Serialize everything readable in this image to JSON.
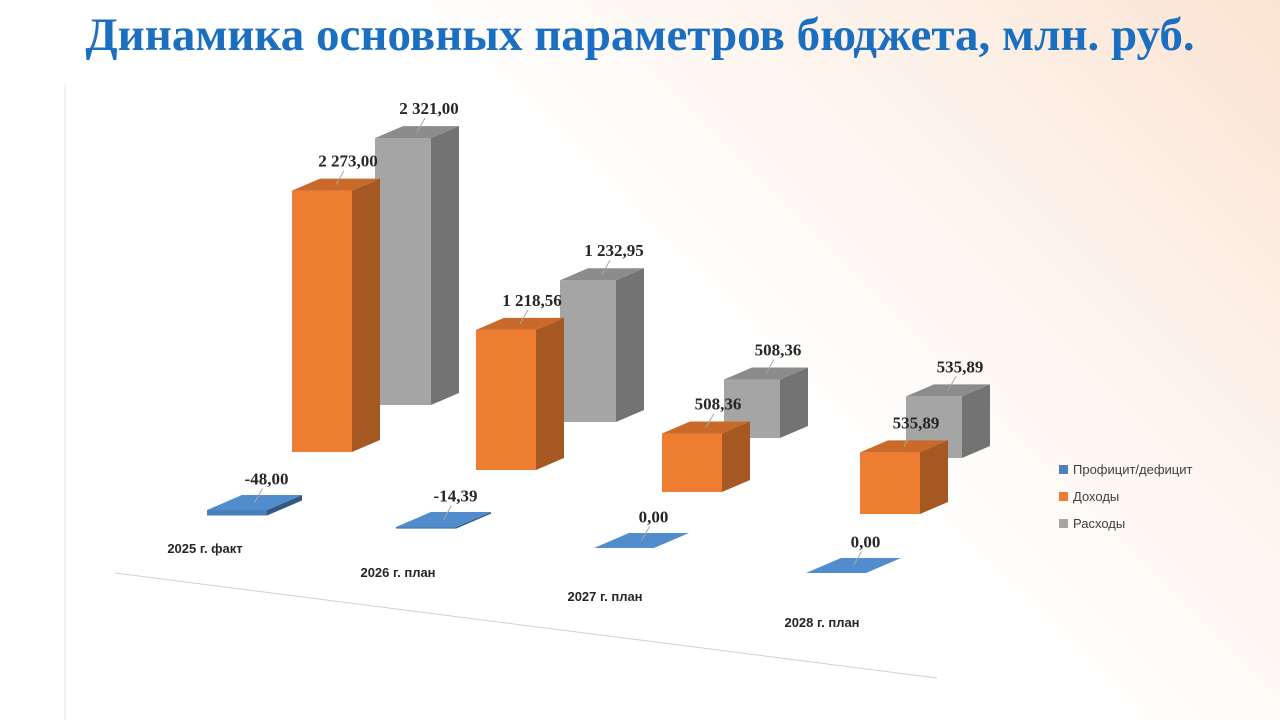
{
  "chart_data": {
    "type": "bar",
    "title": "Динамика основных параметров бюджета, млн. руб.",
    "categories": [
      "2025 г. факт",
      "2026 г. план",
      "2027 г. план",
      "2028 г. план"
    ],
    "series": [
      {
        "name": "Профицит/дефицит",
        "color": "#4a7fba",
        "values": [
          -48,
          -14.39,
          0,
          0
        ],
        "value_labels": [
          "-48,00",
          "-14,39",
          "0,00",
          "0,00"
        ]
      },
      {
        "name": "Доходы",
        "color": "#ed7d31",
        "values": [
          2273,
          1218.56,
          508.36,
          535.89
        ],
        "value_labels": [
          "2 273,00",
          "1 218,56",
          "508,36",
          "535,89"
        ]
      },
      {
        "name": "Расходы",
        "color": "#a5a5a5",
        "values": [
          2321,
          1232.95,
          508.36,
          535.89
        ],
        "value_labels": [
          "2 321,00",
          "1 232,95",
          "508,36",
          "535,89"
        ]
      }
    ],
    "legend": "right"
  }
}
